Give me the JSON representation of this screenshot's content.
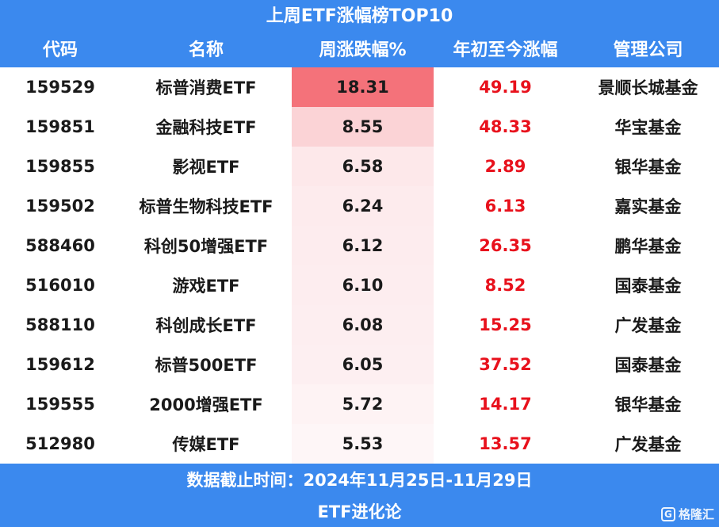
{
  "header": {
    "title": "上周ETF涨幅榜TOP10",
    "columns": [
      "代码",
      "名称",
      "周涨跌幅%",
      "年初至今涨幅",
      "管理公司"
    ]
  },
  "rows": [
    {
      "code": "159529",
      "name": "标普消费ETF",
      "weekly": "18.31",
      "ytd": "49.19",
      "company": "景顺长城基金",
      "highlight": "#f4727a"
    },
    {
      "code": "159851",
      "name": "金融科技ETF",
      "weekly": "8.55",
      "ytd": "48.33",
      "company": "华宝基金",
      "highlight": "#fbd3d6"
    },
    {
      "code": "159855",
      "name": "影视ETF",
      "weekly": "6.58",
      "ytd": "2.89",
      "company": "银华基金",
      "highlight": "#fde8ea"
    },
    {
      "code": "159502",
      "name": "标普生物科技ETF",
      "weekly": "6.24",
      "ytd": "6.13",
      "company": "嘉实基金",
      "highlight": "#fdebed"
    },
    {
      "code": "588460",
      "name": "科创50增强ETF",
      "weekly": "6.12",
      "ytd": "26.35",
      "company": "鹏华基金",
      "highlight": "#fdecee"
    },
    {
      "code": "516010",
      "name": "游戏ETF",
      "weekly": "6.10",
      "ytd": "8.52",
      "company": "国泰基金",
      "highlight": "#fdedef"
    },
    {
      "code": "588110",
      "name": "科创成长ETF",
      "weekly": "6.08",
      "ytd": "15.25",
      "company": "广发基金",
      "highlight": "#fdeef0"
    },
    {
      "code": "159612",
      "name": "标普500ETF",
      "weekly": "6.05",
      "ytd": "37.52",
      "company": "国泰基金",
      "highlight": "#fdeff1"
    },
    {
      "code": "159555",
      "name": "2000增强ETF",
      "weekly": "5.72",
      "ytd": "14.17",
      "company": "银华基金",
      "highlight": "#fef3f4"
    },
    {
      "code": "512980",
      "name": "传媒ETF",
      "weekly": "5.53",
      "ytd": "13.57",
      "company": "广发基金",
      "highlight": "#fef6f7"
    }
  ],
  "footer": {
    "date_line": "数据截止时间：2024年11月25日-11月29日",
    "source": "ETF进化论"
  },
  "watermark": {
    "icon": "g-logo-icon",
    "text": "格隆汇"
  },
  "colors": {
    "header_bg": "#3b89ee",
    "ytd_text": "#e8111c"
  }
}
